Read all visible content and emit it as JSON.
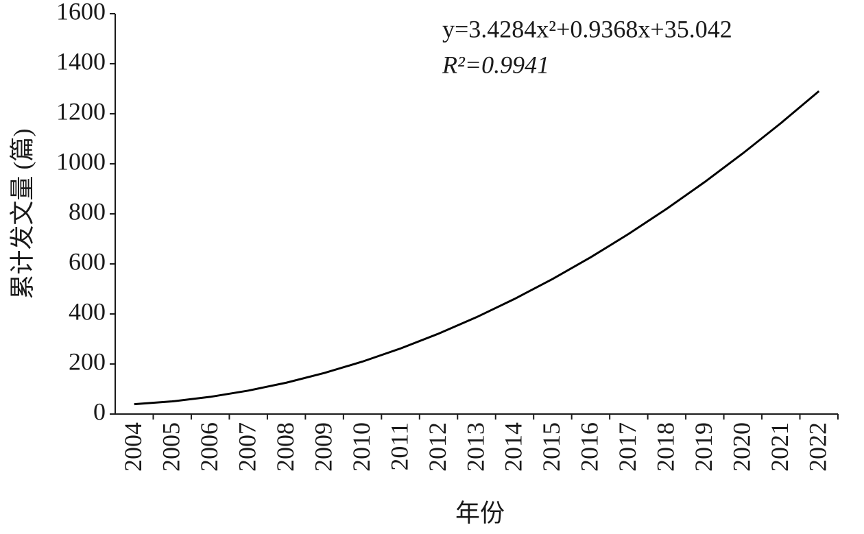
{
  "chart_data": {
    "type": "line",
    "x_label": "年份",
    "y_label": "累计发文量 (篇)",
    "annotations": [
      "y=3.4284x²+0.9368x+35.042",
      "R²=0.9941"
    ],
    "categories": [
      "2004",
      "2005",
      "2006",
      "2007",
      "2008",
      "2009",
      "2010",
      "2011",
      "2012",
      "2013",
      "2014",
      "2015",
      "2016",
      "2017",
      "2018",
      "2019",
      "2020",
      "2021",
      "2022"
    ],
    "values": [
      39.4,
      50.6,
      68.7,
      93.6,
      125.4,
      164.1,
      209.6,
      262.0,
      321.2,
      387.2,
      460.2,
      540.0,
      626.6,
      720.1,
      820.5,
      927.7,
      1041.8,
      1162.7,
      1290.5
    ],
    "color": "#000000",
    "ylim": [
      0,
      1600
    ],
    "yticks": [
      0,
      200,
      400,
      600,
      800,
      1000,
      1200,
      1400,
      1600
    ]
  }
}
